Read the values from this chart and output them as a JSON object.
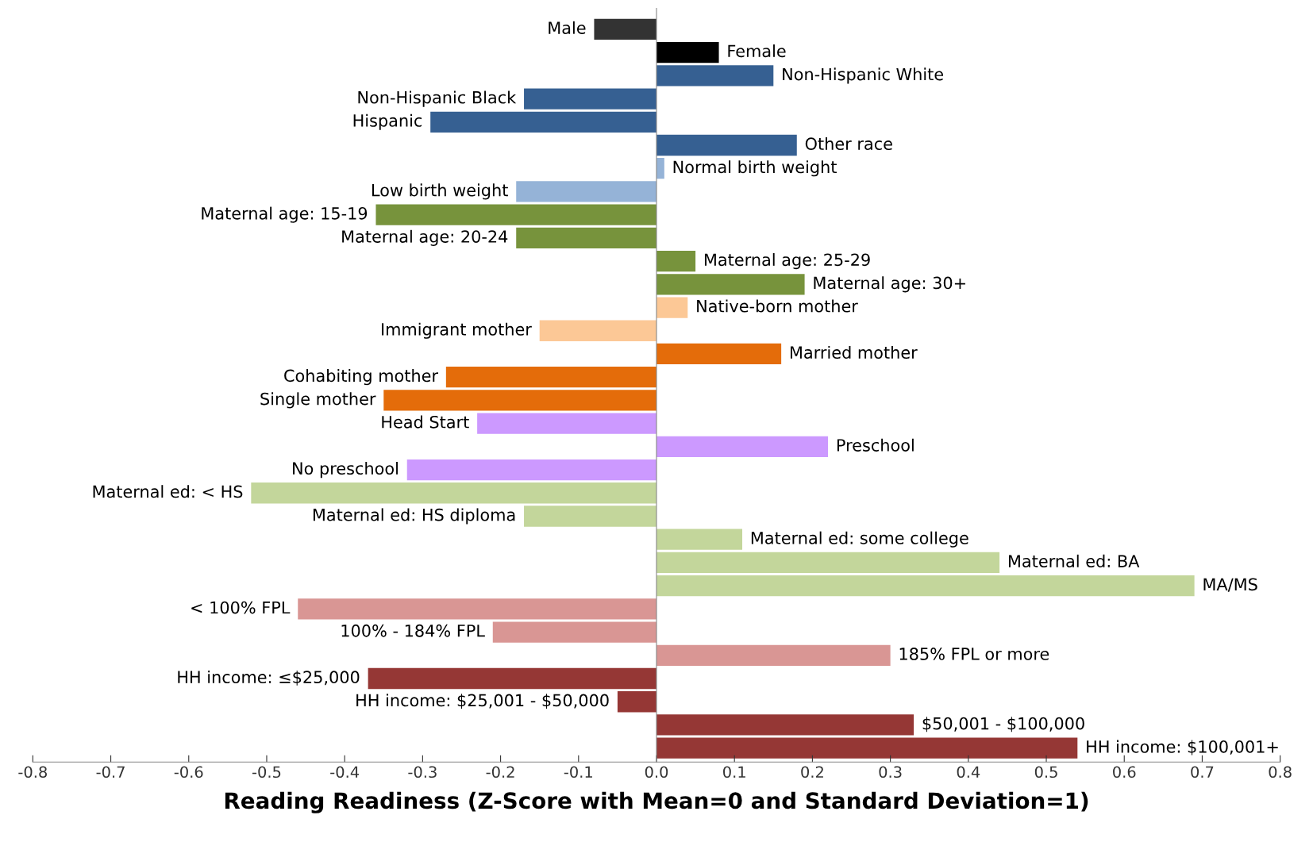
{
  "chart_data": {
    "type": "bar",
    "orientation": "horizontal",
    "xlabel": "Reading Readiness (Z-Score with Mean=0 and Standard Deviation=1)",
    "categories": [
      "Male",
      "Female",
      "Non-Hispanic White",
      "Non-Hispanic Black",
      "Hispanic",
      "Other race",
      "Normal birth weight",
      "Low birth weight",
      "Maternal age: 15-19",
      "Maternal age: 20-24",
      "Maternal age: 25-29",
      "Maternal age: 30+",
      "Native-born mother",
      "Immigrant mother",
      "Married mother",
      "Cohabiting mother",
      "Single mother",
      "Head Start",
      "Preschool",
      "No preschool",
      "Maternal ed: < HS",
      "Maternal ed: HS diploma",
      "Maternal ed: some college",
      "Maternal ed: BA",
      "MA/MS",
      "< 100% FPL",
      "100% - 184% FPL",
      "185% FPL or more",
      "HH income: ≤$25,000",
      "HH income: $25,001 - $50,000",
      "$50,001 - $100,000",
      "HH income: $100,001+"
    ],
    "values": [
      -0.08,
      0.08,
      0.15,
      -0.17,
      -0.29,
      0.18,
      0.01,
      -0.18,
      -0.36,
      -0.18,
      0.05,
      0.19,
      0.04,
      -0.15,
      0.16,
      -0.27,
      -0.35,
      -0.23,
      0.22,
      -0.32,
      -0.52,
      -0.17,
      0.11,
      0.44,
      0.69,
      -0.46,
      -0.21,
      0.3,
      -0.37,
      -0.05,
      0.33,
      0.54
    ],
    "colors": [
      "#333333",
      "#000000",
      "#366092",
      "#366092",
      "#366092",
      "#366092",
      "#95b3d7",
      "#95b3d7",
      "#77933c",
      "#77933c",
      "#77933c",
      "#77933c",
      "#fcc896",
      "#fcc896",
      "#e46c0a",
      "#e46c0a",
      "#e46c0a",
      "#cc99ff",
      "#cc99ff",
      "#cc99ff",
      "#c3d69b",
      "#c3d69b",
      "#c3d69b",
      "#c3d69b",
      "#c3d69b",
      "#d99694",
      "#d99694",
      "#d99694",
      "#953735",
      "#953735",
      "#953735",
      "#953735"
    ],
    "xlim": [
      -0.8,
      0.8
    ],
    "xticks": [
      -0.8,
      -0.7,
      -0.6,
      -0.5,
      -0.4,
      -0.3,
      -0.2,
      -0.1,
      {
        "value": 0,
        "label": "0.0"
      },
      0.1,
      0.2,
      0.3,
      0.4,
      0.5,
      0.6,
      0.7,
      0.8
    ],
    "tick_labels": "x",
    "grid": false
  }
}
